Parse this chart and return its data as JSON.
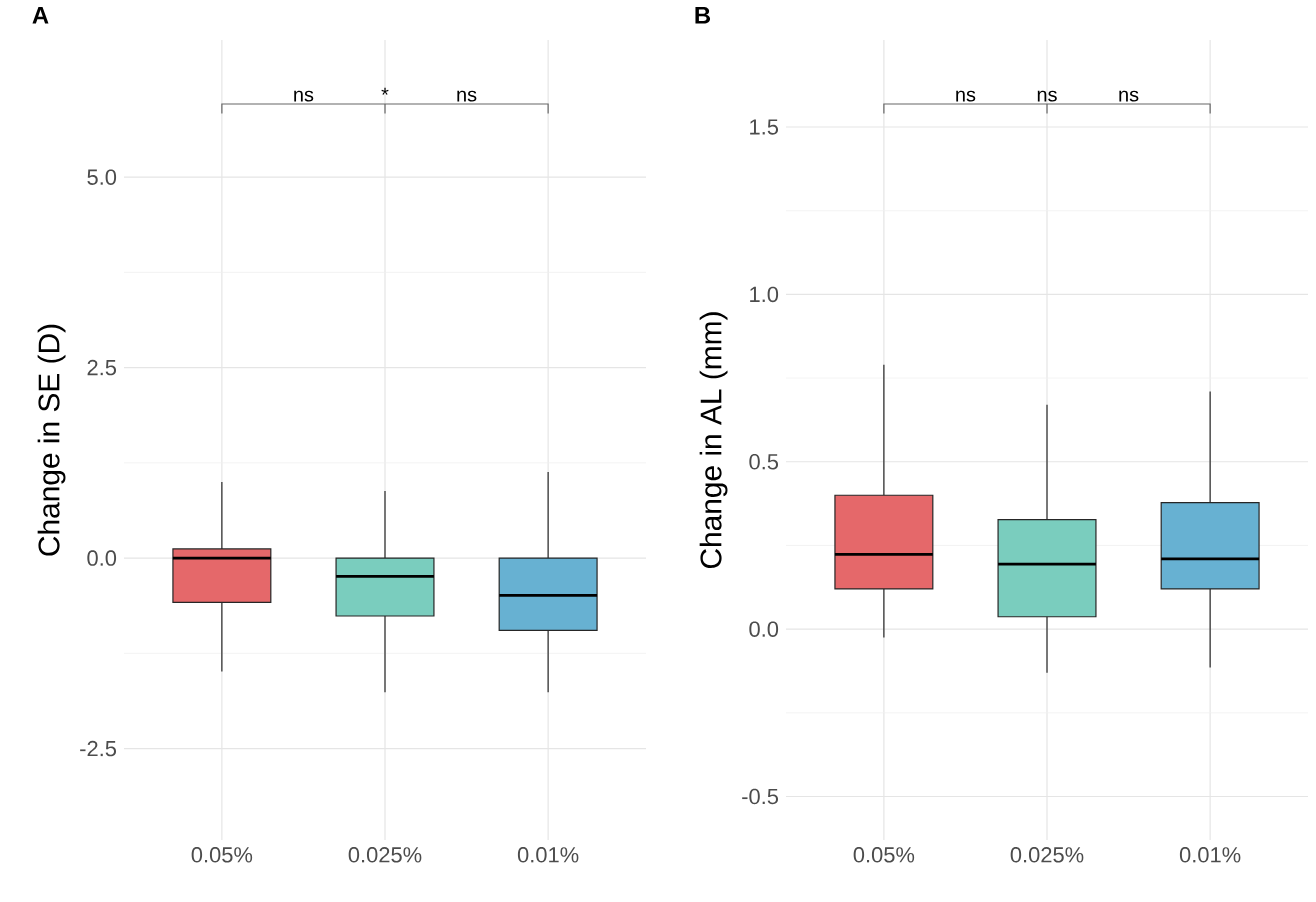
{
  "chart_data": [
    {
      "type": "box",
      "title": "A",
      "ylabel": "Change in SE (D)",
      "categories": [
        "0.05%",
        "0.025%",
        "0.01%"
      ],
      "boxes": [
        {
          "low": -1.49,
          "q1": -0.58,
          "median": 0.0,
          "q3": 0.12,
          "high": 1.0
        },
        {
          "low": -1.76,
          "q1": -0.76,
          "median": -0.24,
          "q3": 0.0,
          "high": 0.88
        },
        {
          "low": -1.76,
          "q1": -0.95,
          "median": -0.49,
          "q3": 0.0,
          "high": 1.13
        }
      ],
      "colors": [
        "#e5686a",
        "#7acdbe",
        "#67b1d2"
      ],
      "ylim": [
        -3.7,
        6.8
      ],
      "yticks": [
        {
          "value": -2.5,
          "label": "-2.5"
        },
        {
          "value": 0,
          "label": "0.0"
        },
        {
          "value": 2.5,
          "label": "2.5"
        },
        {
          "value": 5,
          "label": "5.0"
        }
      ],
      "grid": true,
      "annotations": [
        "ns",
        "*",
        "ns"
      ]
    },
    {
      "type": "box",
      "title": "B",
      "ylabel": "Change in AL (mm)",
      "categories": [
        "0.05%",
        "0.025%",
        "0.01%"
      ],
      "boxes": [
        {
          "low": -0.025,
          "q1": 0.12,
          "median": 0.223,
          "q3": 0.4,
          "high": 0.79
        },
        {
          "low": -0.13,
          "q1": 0.037,
          "median": 0.194,
          "q3": 0.327,
          "high": 0.67
        },
        {
          "low": -0.115,
          "q1": 0.12,
          "median": 0.21,
          "q3": 0.378,
          "high": 0.71
        }
      ],
      "colors": [
        "#e5686a",
        "#7acdbe",
        "#67b1d2"
      ],
      "ylim": [
        -0.63,
        1.76
      ],
      "yticks": [
        {
          "value": -0.5,
          "label": "-0.5"
        },
        {
          "value": 0,
          "label": "0.0"
        },
        {
          "value": 0.5,
          "label": "0.5"
        },
        {
          "value": 1,
          "label": "1.0"
        },
        {
          "value": 1.5,
          "label": "1.5"
        }
      ],
      "grid": true,
      "annotations": [
        "ns",
        "ns",
        "ns"
      ]
    }
  ]
}
